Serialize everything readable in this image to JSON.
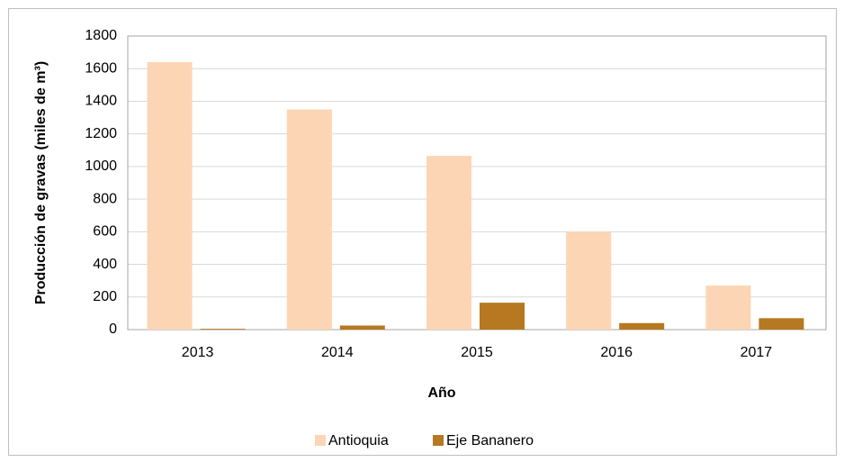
{
  "chart_data": {
    "type": "bar",
    "categories": [
      "2013",
      "2014",
      "2015",
      "2016",
      "2017"
    ],
    "series": [
      {
        "name": "Antioquia",
        "color": "#fcd5b4",
        "values": [
          1640,
          1350,
          1065,
          600,
          270
        ]
      },
      {
        "name": "Eje Bananero",
        "color": "#b67820",
        "values": [
          5,
          25,
          165,
          40,
          70
        ]
      }
    ],
    "x_label": "Año",
    "y_label": "Producción de gravas (miles de m³)",
    "ylim": [
      0,
      1800
    ],
    "yticks": [
      0,
      200,
      400,
      600,
      800,
      1000,
      1200,
      1400,
      1600,
      1800
    ],
    "grid": true,
    "legend": "bottom"
  }
}
